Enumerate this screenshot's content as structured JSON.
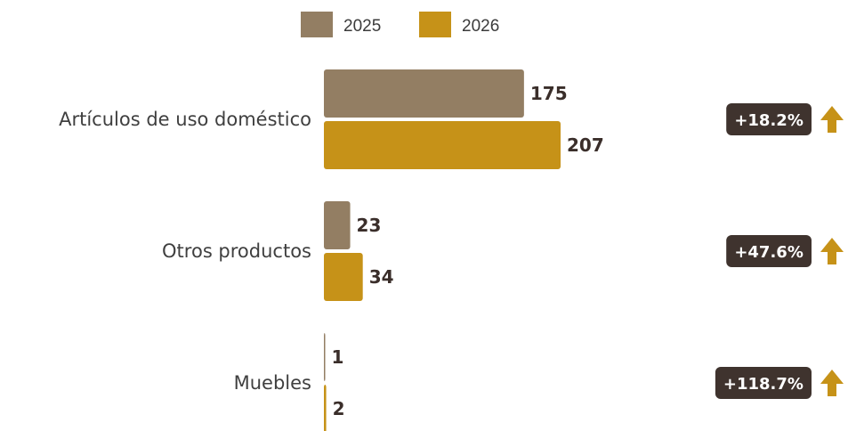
{
  "chart_data": {
    "type": "bar",
    "orientation": "horizontal",
    "categories": [
      "Artículos de uso doméstico",
      "Otros productos",
      "Muebles"
    ],
    "series": [
      {
        "name": "2025",
        "values": [
          175,
          23,
          1
        ],
        "color": "#937e63"
      },
      {
        "name": "2026",
        "values": [
          207,
          34,
          2
        ],
        "color": "#c69218"
      }
    ],
    "value_labels": [
      [
        "175",
        "207"
      ],
      [
        "23",
        "34"
      ],
      [
        "1",
        "2"
      ]
    ],
    "changes": [
      "+18.2%",
      "+47.6%",
      "+118.7%"
    ],
    "change_direction": [
      "up",
      "up",
      "up"
    ],
    "legend_position": "top",
    "grid": false,
    "xlim": [
      0,
      207
    ],
    "badge_color": "#3f332e",
    "arrow_color": "#c69218"
  }
}
